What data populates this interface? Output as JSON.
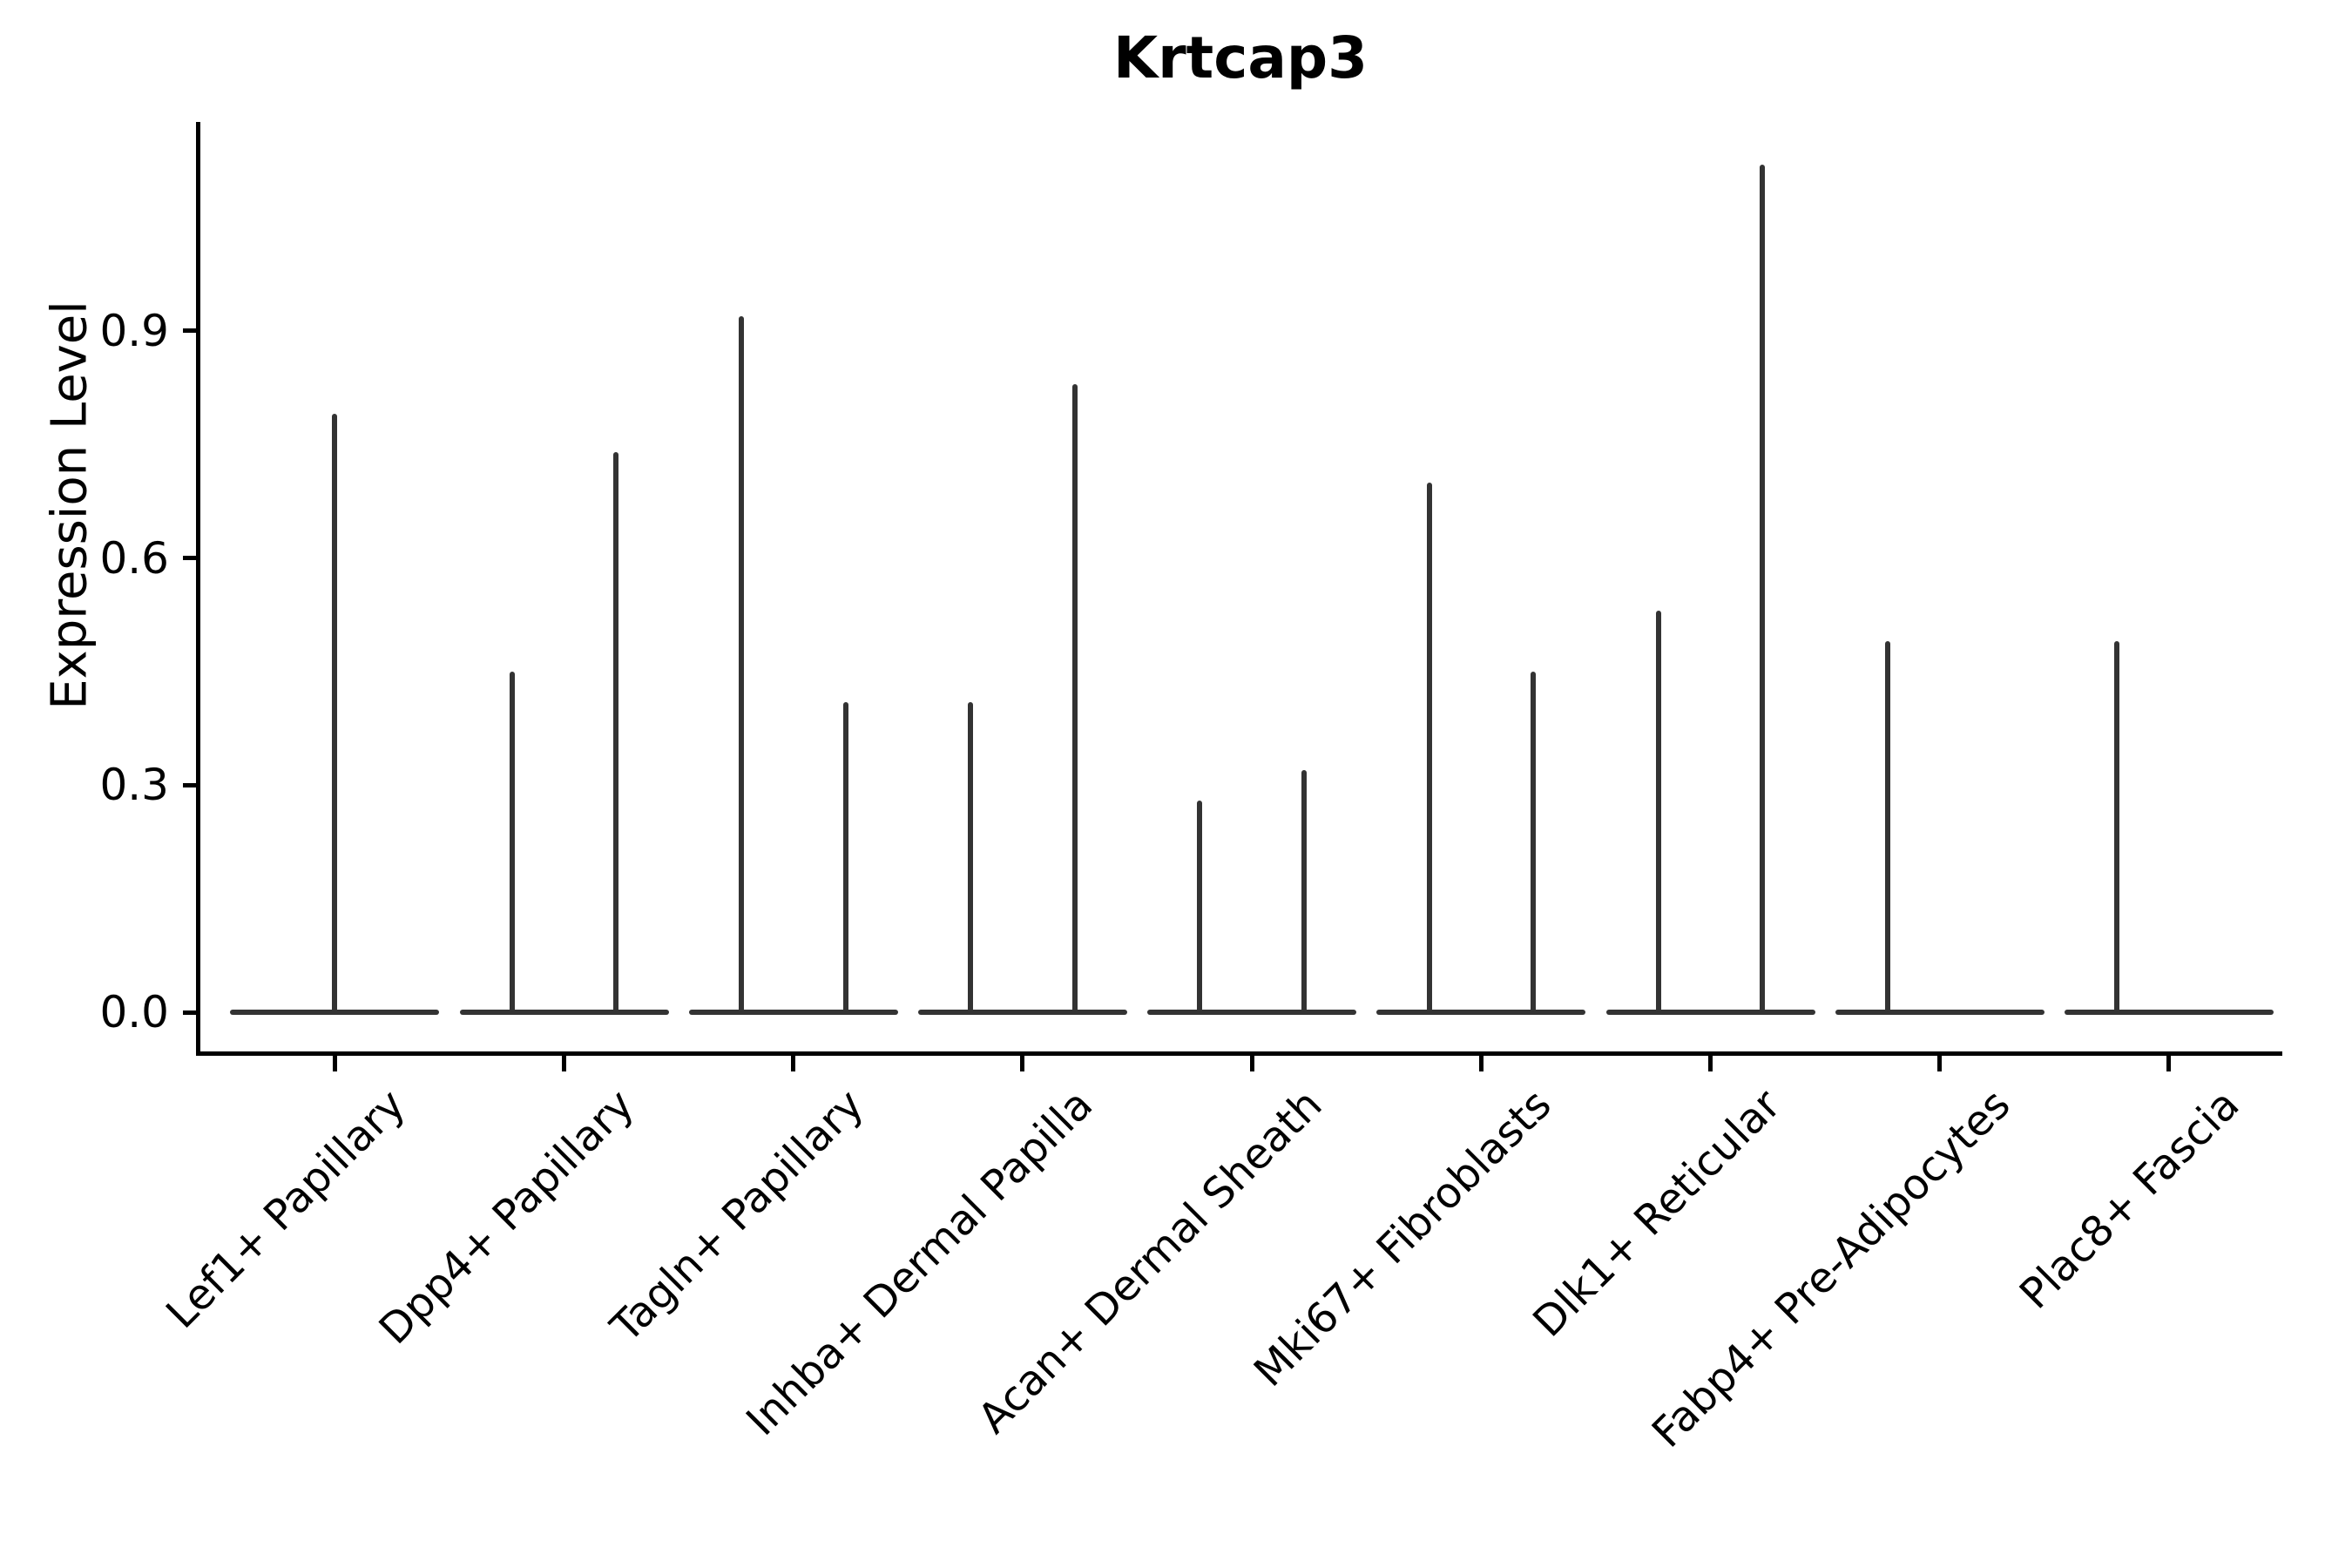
{
  "chart_data": {
    "type": "violin",
    "title": "Krtcap3",
    "ylabel": "Expression Level",
    "xlabel": "",
    "grid": false,
    "legend": null,
    "ylim": [
      -0.06,
      1.18
    ],
    "yticks": [
      {
        "label": "0.0",
        "value": 0.0
      },
      {
        "label": "0.3",
        "value": 0.3
      },
      {
        "label": "0.6",
        "value": 0.6
      },
      {
        "label": "0.9",
        "value": 0.9
      }
    ],
    "violin_color": "#333333",
    "axis_color": "#000000",
    "categories": [
      {
        "label": "Lef1+ Papillary",
        "violins": [
          {
            "span": "full",
            "max": 0.79
          }
        ]
      },
      {
        "label": "Dpp4+ Papillary",
        "violins": [
          {
            "span": "left",
            "max": 0.45
          },
          {
            "span": "right",
            "max": 0.74
          }
        ]
      },
      {
        "label": "Tagln+ Papillary",
        "violins": [
          {
            "span": "left",
            "max": 0.92
          },
          {
            "span": "right",
            "max": 0.41
          }
        ]
      },
      {
        "label": "Inhba+ Dermal Papilla",
        "violins": [
          {
            "span": "left",
            "max": 0.41
          },
          {
            "span": "right",
            "max": 0.83
          }
        ]
      },
      {
        "label": "Acan+ Dermal Sheath",
        "violins": [
          {
            "span": "left",
            "max": 0.28
          },
          {
            "span": "right",
            "max": 0.32
          }
        ]
      },
      {
        "label": "Mki67+ Fibroblasts",
        "violins": [
          {
            "span": "left",
            "max": 0.7
          },
          {
            "span": "right",
            "max": 0.45
          }
        ]
      },
      {
        "label": "Dlk1+ Reticular",
        "violins": [
          {
            "span": "left",
            "max": 0.53
          },
          {
            "span": "right",
            "max": 1.12
          }
        ]
      },
      {
        "label": "Fabp4+ Pre-Adipocytes",
        "violins": [
          {
            "span": "left",
            "max": 0.49
          },
          {
            "span": "right",
            "max": 0.0
          }
        ]
      },
      {
        "label": "Plac8+ Fascia",
        "violins": [
          {
            "span": "left",
            "max": 0.49
          },
          {
            "span": "right",
            "max": 0.0
          }
        ]
      }
    ]
  }
}
